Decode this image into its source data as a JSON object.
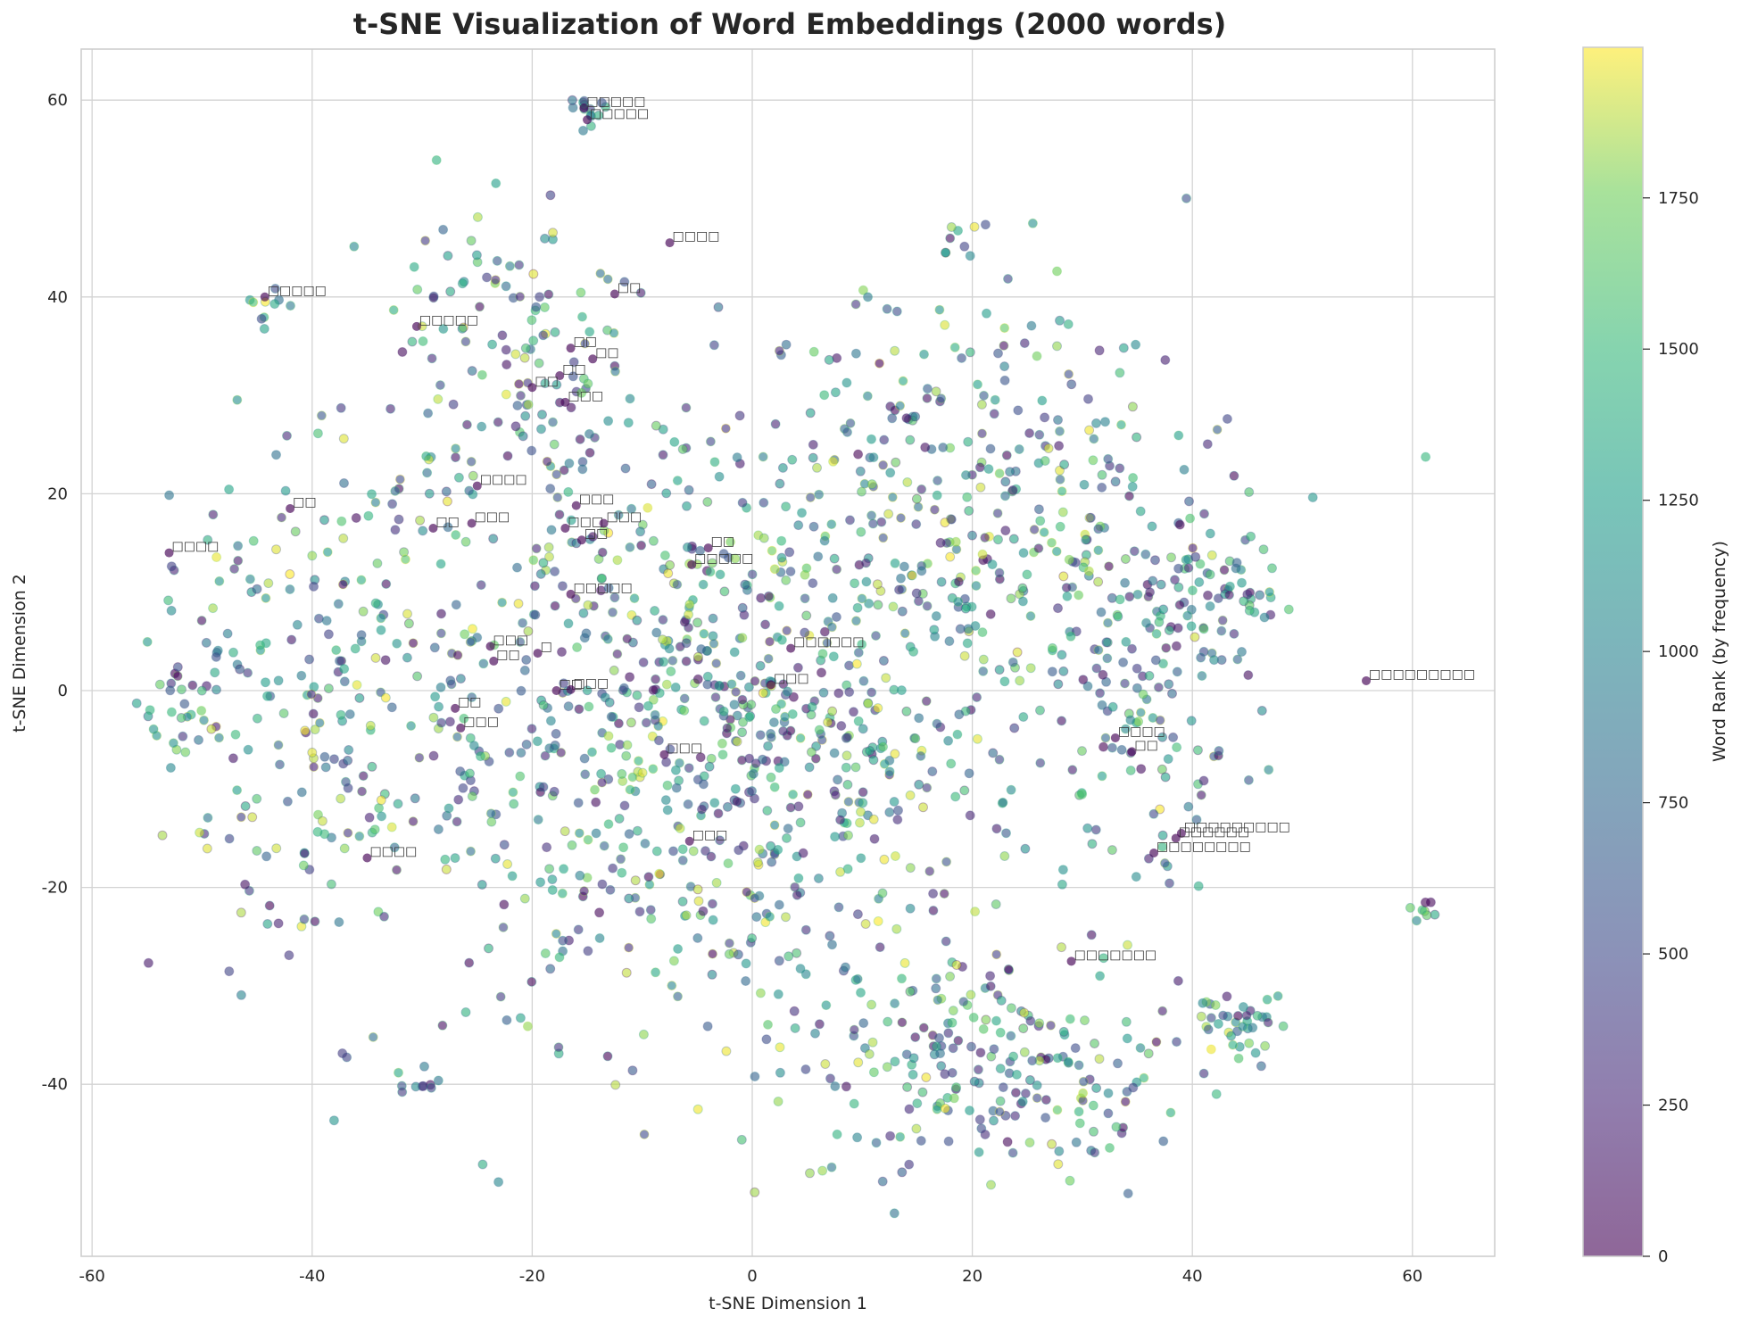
{
  "chart_data": {
    "type": "scatter",
    "title": "t-SNE Visualization of Word Embeddings (2000 words)",
    "xlabel": "t-SNE Dimension 1",
    "ylabel": "t-SNE Dimension 2",
    "xlim": [
      -60.5,
      67.5
    ],
    "ylim": [
      -57,
      65
    ],
    "xticks": [
      -60,
      -40,
      -20,
      0,
      20,
      40,
      60
    ],
    "yticks": [
      -40,
      -20,
      0,
      20,
      40,
      60
    ],
    "grid": true,
    "n_points": 2000,
    "colormap": "viridis",
    "alpha": 0.6,
    "colorbar": {
      "label": "Word Rank (by frequency)",
      "range": [
        0,
        1999
      ],
      "ticks": [
        0,
        250,
        500,
        750,
        1000,
        1250,
        1500,
        1750
      ]
    },
    "annotations_note": "Labels rendered as missing-glyph boxes (non-Latin text not renderable)",
    "annotations": [
      {
        "x": -15.3,
        "y": 59.2,
        "label": "□□□□□"
      },
      {
        "x": -15.0,
        "y": 58.0,
        "label": "□□□□□"
      },
      {
        "x": -7.5,
        "y": 45.5,
        "label": "□□□□"
      },
      {
        "x": -44.3,
        "y": 40.0,
        "label": "□□□□□"
      },
      {
        "x": -30.5,
        "y": 37.0,
        "label": "□□□□□"
      },
      {
        "x": -12.5,
        "y": 40.3,
        "label": "□□"
      },
      {
        "x": -16.5,
        "y": 34.8,
        "label": "□□"
      },
      {
        "x": -14.5,
        "y": 33.7,
        "label": "□□"
      },
      {
        "x": -17.5,
        "y": 32.0,
        "label": "□□"
      },
      {
        "x": -20.0,
        "y": 30.8,
        "label": "□□"
      },
      {
        "x": -17.0,
        "y": 29.3,
        "label": "□□□"
      },
      {
        "x": -25.0,
        "y": 20.8,
        "label": "□□□□"
      },
      {
        "x": -42.0,
        "y": 18.5,
        "label": "□□"
      },
      {
        "x": -53.0,
        "y": 14.0,
        "label": "□□□□"
      },
      {
        "x": -29.0,
        "y": 16.5,
        "label": "□□"
      },
      {
        "x": -25.5,
        "y": 17.0,
        "label": "□□□"
      },
      {
        "x": -16.0,
        "y": 18.8,
        "label": "□□□"
      },
      {
        "x": -17.0,
        "y": 16.5,
        "label": "□□□"
      },
      {
        "x": -13.5,
        "y": 17.0,
        "label": "□□□"
      },
      {
        "x": -15.5,
        "y": 15.3,
        "label": "□□"
      },
      {
        "x": -4.0,
        "y": 14.5,
        "label": "□□"
      },
      {
        "x": -5.5,
        "y": 12.8,
        "label": "□□□□□"
      },
      {
        "x": -16.5,
        "y": 9.8,
        "label": "□□□□□"
      },
      {
        "x": -23.8,
        "y": 4.5,
        "label": "□□□"
      },
      {
        "x": -23.5,
        "y": 3.0,
        "label": "□□"
      },
      {
        "x": -19.5,
        "y": 3.8,
        "label": "□"
      },
      {
        "x": 3.5,
        "y": 4.3,
        "label": "□□□□□□"
      },
      {
        "x": 1.7,
        "y": 0.6,
        "label": "□□□"
      },
      {
        "x": -17.8,
        "y": 0.0,
        "label": "□□"
      },
      {
        "x": -16.5,
        "y": 0.1,
        "label": "□□□"
      },
      {
        "x": -27.0,
        "y": -1.8,
        "label": "□□"
      },
      {
        "x": -26.5,
        "y": -3.8,
        "label": "□□□"
      },
      {
        "x": -8.0,
        "y": -6.5,
        "label": "□□□"
      },
      {
        "x": -5.7,
        "y": -15.3,
        "label": "□□□"
      },
      {
        "x": -35.0,
        "y": -17.0,
        "label": "□□□□"
      },
      {
        "x": 55.8,
        "y": 1.0,
        "label": "□□□□□□□□□"
      },
      {
        "x": 33.0,
        "y": -4.8,
        "label": "□□□□"
      },
      {
        "x": 34.5,
        "y": -6.2,
        "label": "□□"
      },
      {
        "x": 39.0,
        "y": -14.5,
        "label": "□□□□□□□□□"
      },
      {
        "x": 38.5,
        "y": -15.0,
        "label": "□□□□□□"
      },
      {
        "x": 36.5,
        "y": -16.5,
        "label": "□□□□□□□□"
      },
      {
        "x": 29.0,
        "y": -27.5,
        "label": "□□□□□□□"
      }
    ],
    "clusters": [
      {
        "cx": -15,
        "cy": 59,
        "sx": 1.2,
        "sy": 0.8,
        "n": 14
      },
      {
        "cx": -44,
        "cy": 39,
        "sx": 1.0,
        "sy": 1.2,
        "n": 10
      },
      {
        "cx": 42,
        "cy": 10,
        "sx": 3.5,
        "sy": 3.0,
        "n": 60
      },
      {
        "cx": 44,
        "cy": -34,
        "sx": 2.5,
        "sy": 2.0,
        "n": 40
      },
      {
        "cx": 61,
        "cy": -22,
        "sx": 0.6,
        "sy": 0.6,
        "n": 8
      },
      {
        "cx": -30,
        "cy": -40,
        "sx": 1.2,
        "sy": 1.0,
        "n": 10
      },
      {
        "cx": -4,
        "cy": -3,
        "sx": 15,
        "sy": 16,
        "n": 900
      },
      {
        "cx": 22,
        "cy": -38,
        "sx": 9,
        "sy": 7,
        "n": 220
      },
      {
        "cx": 22,
        "cy": 20,
        "sx": 11,
        "sy": 11,
        "n": 260
      },
      {
        "cx": -38,
        "cy": 0,
        "sx": 8,
        "sy": 12,
        "n": 220
      },
      {
        "cx": -22,
        "cy": 35,
        "sx": 6,
        "sy": 8,
        "n": 120
      },
      {
        "cx": 36,
        "cy": -2,
        "sx": 4,
        "sy": 9,
        "n": 100
      },
      {
        "cx": 19,
        "cy": 46,
        "sx": 1,
        "sy": 1,
        "n": 8
      },
      {
        "cx": -52,
        "cy": -1,
        "sx": 2.5,
        "sy": 2.5,
        "n": 30
      }
    ]
  }
}
